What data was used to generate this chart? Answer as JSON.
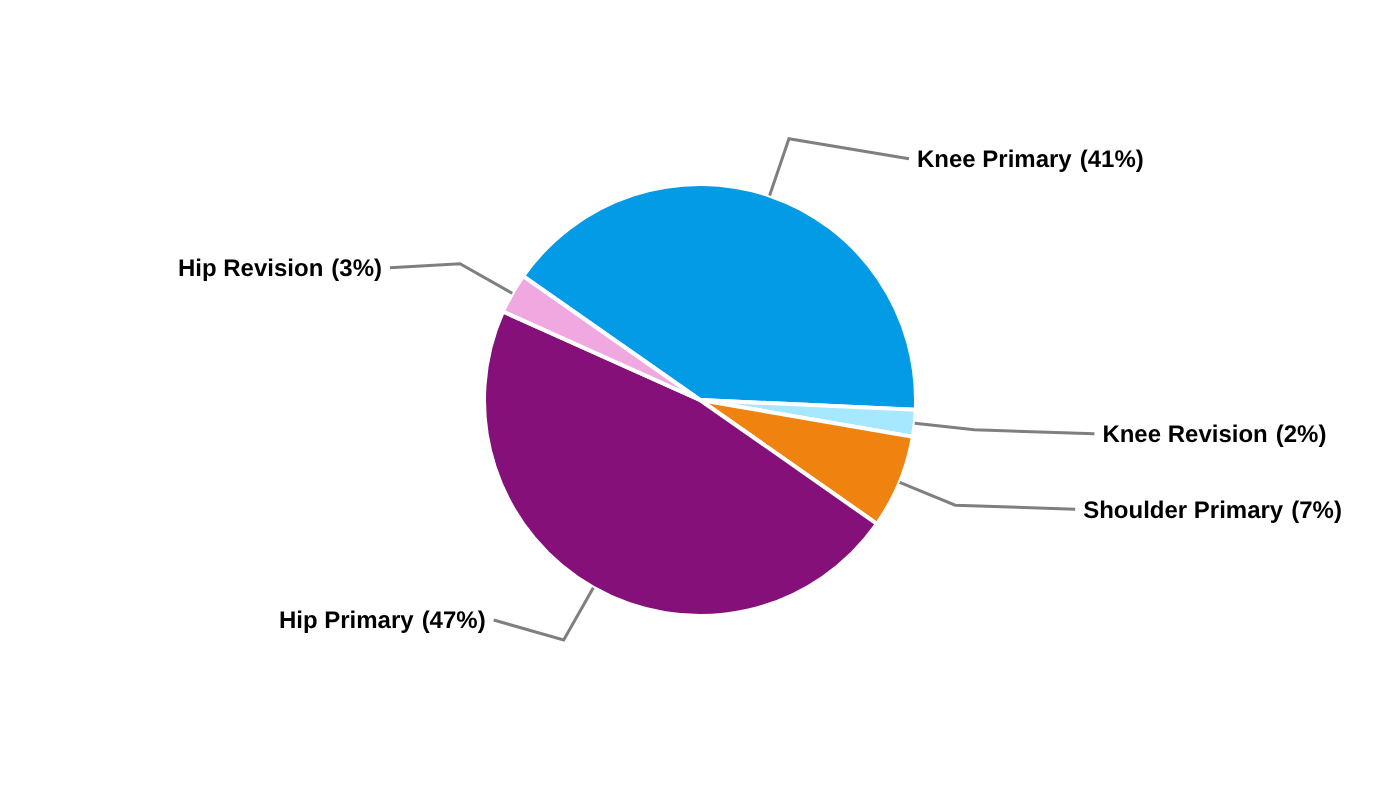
{
  "chart_data": {
    "type": "pie",
    "categories": [
      "Knee Primary",
      "Knee Revision",
      "Shoulder Primary",
      "Hip Primary",
      "Hip Revision"
    ],
    "values": [
      41,
      2,
      7,
      47,
      3
    ],
    "colors": [
      "#039be5",
      "#a6e8fd",
      "#f0820f",
      "#861079",
      "#f0a8e0"
    ],
    "value_labels": [
      "(41%)",
      "(2%)",
      "(7%)",
      "(47%)",
      "(3%)"
    ]
  }
}
